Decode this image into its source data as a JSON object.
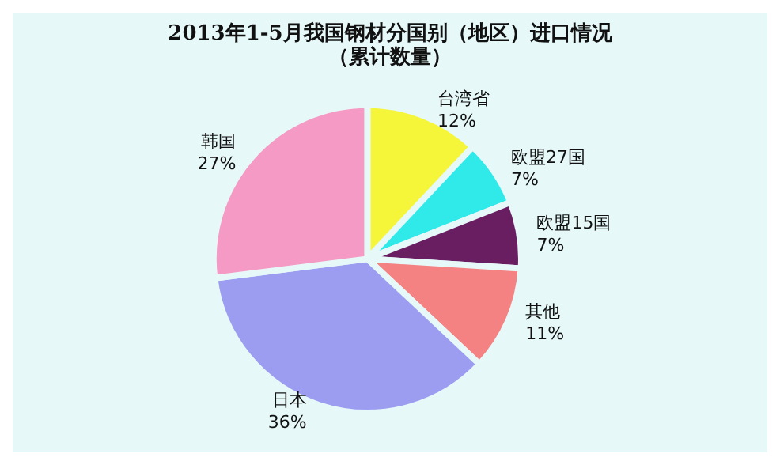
{
  "chart_data": {
    "type": "pie",
    "title": "2013年1-5月我国钢材分国别（地区）进口情况",
    "subtitle": "（累计数量）",
    "categories": [
      "台湾省",
      "欧盟27国",
      "欧盟15国",
      "其他",
      "日本",
      "韩国"
    ],
    "values": [
      12,
      7,
      7,
      11,
      36,
      27
    ],
    "value_labels": [
      "12%",
      "7%",
      "7%",
      "11%",
      "36%",
      "27%"
    ],
    "colors": [
      "#f5f53a",
      "#30eaea",
      "#6a1e62",
      "#f58282",
      "#9c9cf0",
      "#f59ac4"
    ],
    "legend": false
  }
}
